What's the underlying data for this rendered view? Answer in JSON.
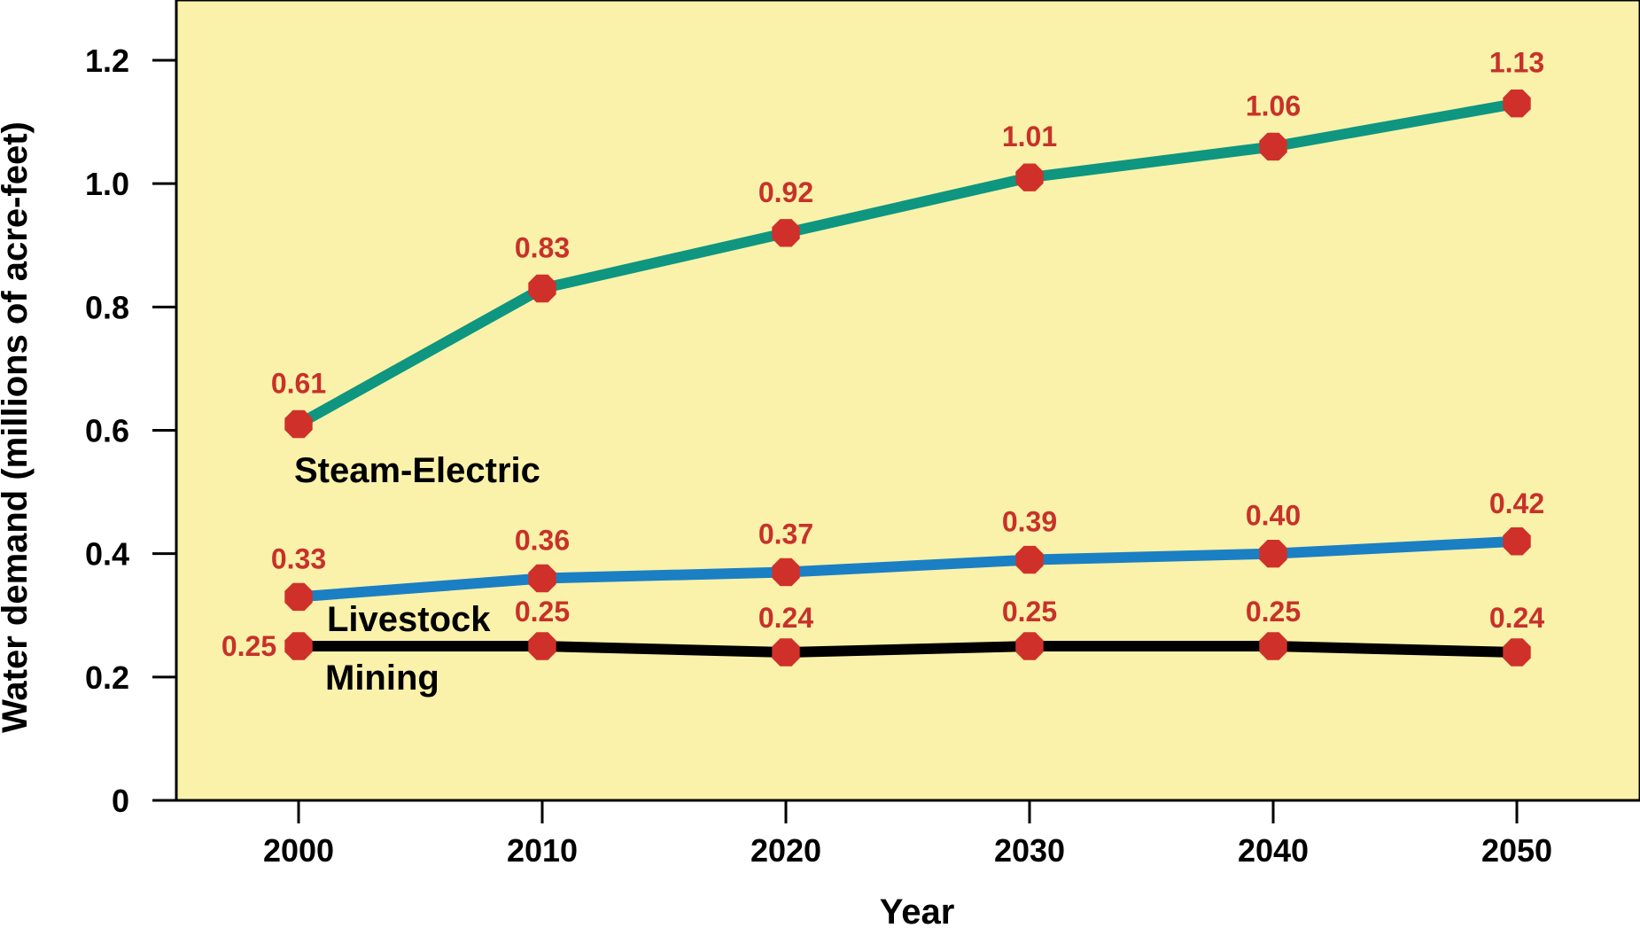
{
  "chart_data": {
    "type": "line",
    "title": "",
    "xlabel": "Year",
    "ylabel": "Water demand (millions of acre-feet)",
    "x": [
      2000,
      2010,
      2020,
      2030,
      2040,
      2050
    ],
    "x_tick_labels": [
      "2000",
      "2010",
      "2020",
      "2030",
      "2040",
      "2050"
    ],
    "y_ticks": [
      0,
      0.2,
      0.4,
      0.6,
      0.8,
      1.0,
      1.2
    ],
    "y_tick_labels": [
      "0",
      "0.2",
      "0.4",
      "0.6",
      "0.8",
      "1.0",
      "1.2"
    ],
    "xlim": [
      1995,
      2055
    ],
    "ylim": [
      0,
      1.3
    ],
    "grid": false,
    "legend": "none (series labeled directly on chart)",
    "series": [
      {
        "name": "Steam-Electric",
        "color": "#0e9680",
        "values": [
          0.61,
          0.83,
          0.92,
          1.01,
          1.06,
          1.13
        ],
        "value_labels": [
          "0.61",
          "0.83",
          "0.92",
          "1.01",
          "1.06",
          "1.13"
        ]
      },
      {
        "name": "Livestock",
        "color": "#1b7fc4",
        "values": [
          0.33,
          0.36,
          0.37,
          0.39,
          0.4,
          0.42
        ],
        "value_labels": [
          "0.33",
          "0.36",
          "0.37",
          "0.39",
          "0.40",
          "0.42"
        ]
      },
      {
        "name": "Mining",
        "color": "#000000",
        "values": [
          0.25,
          0.25,
          0.24,
          0.25,
          0.25,
          0.24
        ],
        "value_labels": [
          "0.25",
          "0.25",
          "0.24",
          "0.25",
          "0.25",
          "0.24"
        ]
      }
    ],
    "marker_color": "#d0302a",
    "data_label_color": "#c8312a",
    "plot_background": "#faf2aa"
  }
}
